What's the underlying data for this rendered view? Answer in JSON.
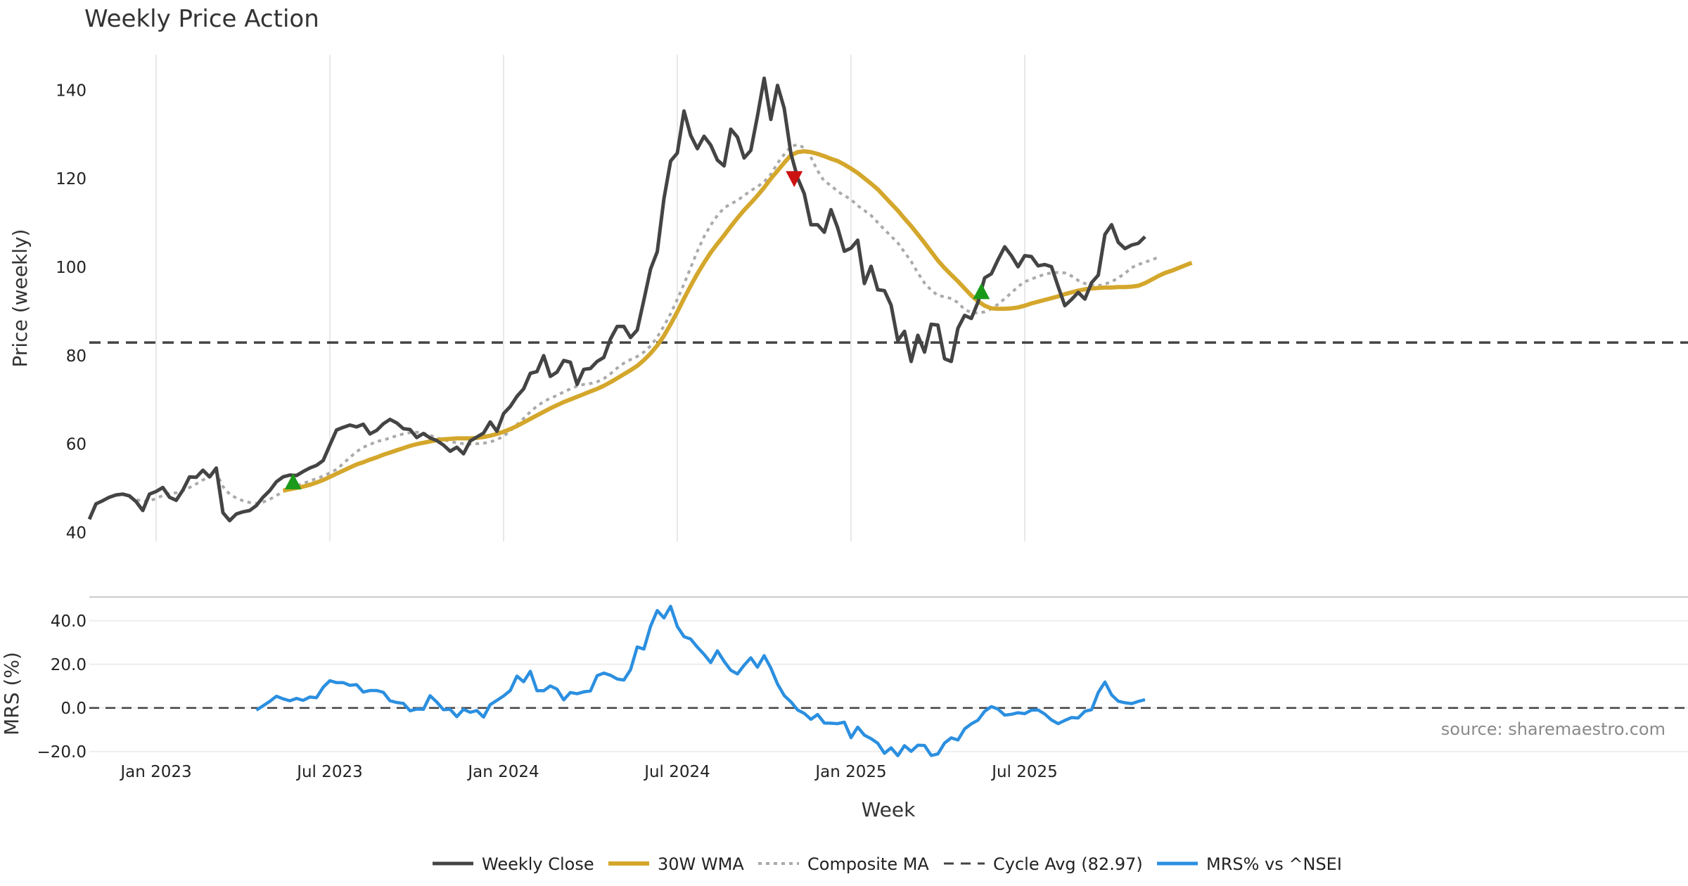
{
  "chart_data": {
    "type": "line",
    "title": "Weekly Price Action",
    "colors": {
      "close": "#444444",
      "wma": "#d4a72c",
      "composite": "#aaaaaa",
      "cycle": "#444444",
      "mrs": "#2b8fe0",
      "buy": "#1a9a1a",
      "sell": "#cc1111",
      "grid": "#e8e8e8"
    },
    "x_axis": {
      "label": "Week",
      "ticks": [
        {
          "label": "Jan 2023",
          "week": 10
        },
        {
          "label": "Jul 2023",
          "week": 36
        },
        {
          "label": "Jan 2024",
          "week": 62
        },
        {
          "label": "Jul 2024",
          "week": 88
        },
        {
          "label": "Jan 2025",
          "week": 114
        },
        {
          "label": "Jul 2025",
          "week": 140
        }
      ]
    },
    "price_panel": {
      "ylabel": "Price (weekly)",
      "ylim": [
        38,
        148
      ],
      "yticks": [
        {
          "label": "40",
          "value": 40
        },
        {
          "label": "60",
          "value": 60
        },
        {
          "label": "80",
          "value": 80
        },
        {
          "label": "100",
          "value": 100
        },
        {
          "label": "120",
          "value": 120
        },
        {
          "label": "140",
          "value": 140
        }
      ],
      "cycle_avg": 82.97,
      "series": [
        {
          "name": "Weekly Close",
          "key": "close",
          "start_week": 0,
          "values": [
            43,
            46.5,
            47.2,
            48,
            48.5,
            48.7,
            48.3,
            47,
            45,
            48.7,
            49.3,
            50.2,
            48,
            47.3,
            49.6,
            52.6,
            52.5,
            54.1,
            52.6,
            54.6,
            44.5,
            42.7,
            44.2,
            44.7,
            45,
            46.1,
            48,
            49.5,
            51.5,
            52.6,
            53,
            52.9,
            53.8,
            54.6,
            55.2,
            56.3,
            59.8,
            63.2,
            63.8,
            64.3,
            63.9,
            64.5,
            62.3,
            63.1,
            64.6,
            65.6,
            64.8,
            63.5,
            63.3,
            61.5,
            62.4,
            61.4,
            60.8,
            59.8,
            58.4,
            59.3,
            57.8,
            60.7,
            61.6,
            62.5,
            65,
            62.9,
            66.9,
            68.5,
            70.8,
            72.5,
            76,
            76.4,
            80,
            75.3,
            76.3,
            78.9,
            78.5,
            73.5,
            76.9,
            77.1,
            78.7,
            79.6,
            83.8,
            86.6,
            86.6,
            84.1,
            85.8,
            92.6,
            99.6,
            103.5,
            115.5,
            124,
            125.8,
            135.3,
            129.8,
            126.8,
            129.6,
            127.6,
            124.2,
            122.9,
            131.2,
            129.4,
            124.7,
            126.4,
            134.2,
            142.7,
            133.4,
            141.1,
            135.9,
            125.7,
            120.2,
            116.6,
            109.6,
            109.6,
            107.9,
            113,
            108.9,
            103.6,
            104.3,
            106.1,
            96.3,
            100.2,
            94.9,
            94.7,
            91.4,
            83.4,
            85.5,
            78.7,
            84.6,
            80.8,
            87.1,
            86.9,
            79.3,
            78.7,
            86.2,
            89.1,
            88.4,
            92.1,
            97.6,
            98.5,
            101.7,
            104.6,
            102.6,
            100.1,
            102.6,
            102.4,
            100.3,
            100.6,
            100.1,
            95.6,
            91.3,
            92.7,
            94.3,
            92.8,
            96.5,
            98.2,
            107.4,
            109.6,
            105.6,
            104.2,
            105,
            105.4,
            106.9
          ]
        },
        {
          "name": "30W WMA",
          "key": "wma",
          "start_week": 29,
          "values": [
            49.5,
            49.8,
            50.1,
            50.4,
            50.8,
            51.3,
            51.9,
            52.6,
            53.3,
            54,
            54.7,
            55.4,
            55.9,
            56.5,
            57,
            57.6,
            58.1,
            58.6,
            59.1,
            59.6,
            60,
            60.3,
            60.6,
            60.9,
            61.1,
            61.2,
            61.3,
            61.3,
            61.3,
            61.4,
            61.6,
            61.9,
            62.3,
            62.8,
            63.4,
            64.1,
            64.9,
            65.7,
            66.5,
            67.3,
            68.1,
            68.8,
            69.5,
            70.1,
            70.7,
            71.3,
            71.9,
            72.5,
            73.2,
            74,
            74.9,
            75.8,
            76.7,
            77.7,
            79,
            80.5,
            82.3,
            84.5,
            87.1,
            89.9,
            92.9,
            95.8,
            98.5,
            101,
            103.3,
            105.3,
            107.2,
            109.2,
            111.1,
            112.9,
            114.5,
            116.2,
            118,
            120,
            121.8,
            123.6,
            125.3,
            126,
            126.2,
            126,
            125.6,
            125.1,
            124.5,
            124,
            123.2,
            122.3,
            121.3,
            120.1,
            118.9,
            117.6,
            116,
            114.4,
            112.8,
            111,
            109.3,
            107.4,
            105.5,
            103.5,
            101.5,
            99.8,
            98.3,
            96.8,
            95.2,
            93.6,
            92.3,
            91.3,
            90.7,
            90.6,
            90.6,
            90.7,
            90.9,
            91.3,
            91.8,
            92.2,
            92.6,
            93,
            93.4,
            93.9,
            94.3,
            94.7,
            95,
            95.2,
            95.3,
            95.4,
            95.4,
            95.5,
            95.5,
            95.6,
            95.8,
            96.4,
            97.2,
            98,
            98.7,
            99.2,
            99.8,
            100.4,
            101
          ]
        },
        {
          "name": "Composite MA",
          "key": "composite",
          "start_week": 6,
          "values": [
            48,
            47.5,
            47,
            47.2,
            47.7,
            48.4,
            48.8,
            49,
            49.5,
            50.2,
            51,
            51.9,
            52.6,
            53.6,
            50.4,
            48.7,
            47.8,
            47.2,
            46.8,
            46.6,
            46.9,
            47.5,
            48.4,
            49.2,
            50,
            50.6,
            51.1,
            51.7,
            52.2,
            52.8,
            53.5,
            54.3,
            55.6,
            57,
            58.3,
            59.3,
            59.9,
            60.6,
            60.9,
            61.4,
            61.9,
            62.3,
            62.6,
            62.7,
            62.5,
            62,
            61.4,
            61,
            60.6,
            60.3,
            60.1,
            60,
            60.1,
            60.2,
            60.5,
            61,
            61.8,
            63,
            64.4,
            65.8,
            67.3,
            68.6,
            69.6,
            70.4,
            71,
            71.8,
            72.5,
            73.1,
            73.5,
            73.7,
            74.1,
            74.8,
            75.9,
            77.2,
            78.3,
            79.1,
            79.8,
            80.8,
            82.2,
            84.2,
            86.7,
            89.5,
            92.7,
            96.2,
            99.9,
            103.6,
            106.9,
            109.5,
            111.7,
            113.4,
            114.3,
            115.1,
            116.2,
            117.3,
            118.2,
            119.3,
            121,
            123.5,
            125.5,
            127.3,
            127.7,
            127,
            124.8,
            121.8,
            119.4,
            118.5,
            117.1,
            116.2,
            115.3,
            113.9,
            112.8,
            111.7,
            110.1,
            108.5,
            107,
            105.5,
            103.4,
            101.3,
            98.7,
            96.4,
            94.8,
            93.6,
            93.3,
            92.9,
            92,
            90.4,
            89.8,
            89.6,
            89.9,
            90.6,
            91.6,
            92.9,
            94.2,
            95.6,
            96.7,
            97.3,
            97.9,
            98.4,
            98.7,
            98.8,
            98.7,
            98,
            97,
            96.3,
            95.9,
            95.8,
            96.2,
            96.7,
            97.6,
            98.6,
            99.9,
            100.6,
            101.1,
            101.7,
            102.2
          ]
        }
      ],
      "markers": [
        {
          "type": "buy",
          "week": 30.5,
          "value": 51.5
        },
        {
          "type": "sell",
          "week": 105.5,
          "value": 120
        },
        {
          "type": "buy",
          "week": 133.5,
          "value": 94.5
        }
      ]
    },
    "mrs_panel": {
      "ylabel": "MRS (%)",
      "ylim": [
        -22,
        48
      ],
      "yticks": [
        {
          "label": "−20.0",
          "value": -20
        },
        {
          "label": "0.0",
          "value": 0
        },
        {
          "label": "20.0",
          "value": 20
        },
        {
          "label": "40.0",
          "value": 40
        }
      ],
      "zero_line": 0,
      "series": [
        {
          "name": "MRS% vs ^NSEI",
          "key": "mrs",
          "start_week": 25,
          "values": [
            -1,
            1,
            3,
            5.4,
            4.2,
            3.3,
            4.4,
            3.5,
            5,
            4.7,
            9.5,
            12.5,
            11.6,
            11.6,
            10.4,
            10.7,
            7.3,
            8,
            8,
            7.2,
            3.3,
            2.5,
            2.1,
            -1.3,
            -0.5,
            -0.6,
            5.6,
            2.7,
            -0.8,
            -0.6,
            -4,
            -0.6,
            -2,
            -1.2,
            -4.2,
            1.5,
            3.5,
            5.5,
            8,
            14.6,
            12,
            16.8,
            7.9,
            7.9,
            10.1,
            8.6,
            3.7,
            7.1,
            6.5,
            7.4,
            7.8,
            14.8,
            16,
            15,
            13.3,
            12.8,
            17.5,
            28,
            27,
            37.5,
            44.7,
            41.3,
            46.6,
            37.4,
            32.7,
            31.6,
            27.9,
            24.6,
            20.8,
            26.2,
            21.4,
            17.3,
            15.6,
            19.6,
            23,
            18.7,
            24,
            18.3,
            11,
            5.7,
            2.8,
            -0.9,
            -2.5,
            -5.2,
            -3,
            -6.9,
            -7,
            -7.2,
            -6.5,
            -13.6,
            -8.8,
            -12.5,
            -14.1,
            -16.2,
            -20.8,
            -18.3,
            -21.9,
            -17.3,
            -19.9,
            -17.1,
            -17.2,
            -21.8,
            -21.1,
            -16.1,
            -13.7,
            -14.7,
            -9.6,
            -7.3,
            -5.6,
            -1.5,
            0.6,
            -0.5,
            -3.3,
            -2.9,
            -2.2,
            -2.6,
            -1,
            -0.9,
            -2.8,
            -5.5,
            -7.2,
            -5.7,
            -4.4,
            -4.6,
            -1.5,
            -0.8,
            7.1,
            11.9,
            6,
            3.1,
            2.4,
            2,
            3,
            3.8
          ]
        }
      ]
    },
    "legend": [
      {
        "label": "Weekly Close",
        "key": "close",
        "style": "solid"
      },
      {
        "label": "30W WMA",
        "key": "wma",
        "style": "solid"
      },
      {
        "label": "Composite MA",
        "key": "composite",
        "style": "dotted"
      },
      {
        "label": "Cycle Avg (82.97)",
        "key": "cycle",
        "style": "dashed"
      },
      {
        "label": "MRS% vs ^NSEI",
        "key": "mrs",
        "style": "solid"
      }
    ],
    "source": "source: sharemaestro.com"
  }
}
